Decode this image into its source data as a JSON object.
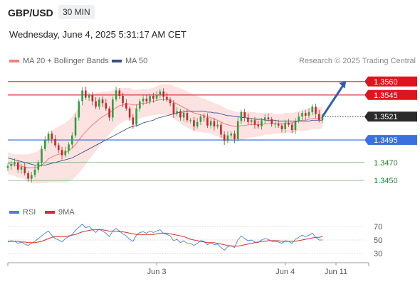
{
  "header": {
    "symbol": "GBP/USD",
    "timeframe": "30 MIN"
  },
  "datetime": "Wednesday, June 4, 2025 5:31:17 AM CET",
  "legend": {
    "ma20": "MA 20 + Bollinger Bands",
    "ma50": "MA 50"
  },
  "credit": "Research © 2025 Trading Central",
  "rsi_legend": {
    "rsi": "RSI",
    "ma": "9MA"
  },
  "colors": {
    "up": "#2e9e3e",
    "down": "#c62828",
    "resistance": "#e0141e",
    "support": "#3a6fe0",
    "target_green": "#4a9a4a",
    "ma50": "#3d4f8a",
    "bollinger_fill": "#fde2e2",
    "ma20": "#f08080",
    "arrow": "#2f5fa8"
  },
  "chart_data": [
    {
      "type": "candlestick",
      "ylim": [
        1.3428,
        1.3578
      ],
      "xlim": [
        0,
        105
      ],
      "x_ticks": [
        {
          "index": 44,
          "label": "Jun 3"
        },
        {
          "index": 82,
          "label": "Jun 4"
        },
        {
          "index": 97,
          "label": "Jun 11"
        }
      ],
      "price_levels": [
        {
          "value": 1.356,
          "label": "1.3560",
          "kind": "resistance"
        },
        {
          "value": 1.3545,
          "label": "1.3545",
          "kind": "resistance"
        },
        {
          "value": 1.3521,
          "label": "1.3521",
          "kind": "current"
        },
        {
          "value": 1.3495,
          "label": "1.3495",
          "kind": "support"
        },
        {
          "value": 1.347,
          "label": "1.3470",
          "kind": "target"
        },
        {
          "value": 1.345,
          "label": "1.3450",
          "kind": "target"
        }
      ],
      "close": [
        1.3466,
        1.3468,
        1.347,
        1.3462,
        1.3465,
        1.3458,
        1.3452,
        1.3456,
        1.3462,
        1.347,
        1.3485,
        1.3495,
        1.3502,
        1.3496,
        1.3489,
        1.3484,
        1.3478,
        1.3483,
        1.349,
        1.35,
        1.352,
        1.3538,
        1.355,
        1.3542,
        1.3545,
        1.3538,
        1.3532,
        1.354,
        1.3536,
        1.353,
        1.352,
        1.354,
        1.355,
        1.3544,
        1.3536,
        1.353,
        1.352,
        1.3512,
        1.353,
        1.3538,
        1.3541,
        1.3538,
        1.3544,
        1.3541,
        1.3545,
        1.3549,
        1.3543,
        1.354,
        1.3536,
        1.3524,
        1.3527,
        1.352,
        1.3525,
        1.3517,
        1.3517,
        1.351,
        1.3515,
        1.3521,
        1.352,
        1.3511,
        1.3516,
        1.351,
        1.3512,
        1.3501,
        1.3494,
        1.35,
        1.3502,
        1.3496,
        1.3516,
        1.3526,
        1.352,
        1.3515,
        1.3517,
        1.3512,
        1.351,
        1.3517,
        1.352,
        1.3518,
        1.3513,
        1.3513,
        1.3511,
        1.3507,
        1.3514,
        1.3512,
        1.3506,
        1.3516,
        1.3521,
        1.3525,
        1.3522,
        1.3526,
        1.3532,
        1.3524,
        1.3517,
        1.3521
      ],
      "projection": {
        "from_index": 93,
        "from_value": 1.3521,
        "to_index": 100,
        "to_value": 1.356
      },
      "ma20": [
        1.3469,
        1.3468,
        1.3467,
        1.3466,
        1.3466,
        1.3465,
        1.3464,
        1.3464,
        1.3464,
        1.3465,
        1.3467,
        1.347,
        1.3474,
        1.3476,
        1.3478,
        1.3479,
        1.348,
        1.3481,
        1.3483,
        1.3486,
        1.349,
        1.3495,
        1.35,
        1.3504,
        1.3508,
        1.3512,
        1.3515,
        1.3518,
        1.3521,
        1.3523,
        1.3525,
        1.3528,
        1.3531,
        1.3533,
        1.3534,
        1.3535,
        1.3535,
        1.3534,
        1.3534,
        1.3535,
        1.3536,
        1.3536,
        1.3537,
        1.3538,
        1.3539,
        1.354,
        1.354,
        1.354,
        1.3539,
        1.3537,
        1.3535,
        1.3533,
        1.3531,
        1.3529,
        1.3527,
        1.3525,
        1.3524,
        1.3523,
        1.3522,
        1.3521,
        1.352,
        1.3518,
        1.3517,
        1.3515,
        1.3513,
        1.3512,
        1.3511,
        1.351,
        1.351,
        1.3511,
        1.3511,
        1.3512,
        1.3512,
        1.3512,
        1.3512,
        1.3512,
        1.3513,
        1.3513,
        1.3513,
        1.3513,
        1.3513,
        1.3513,
        1.3514,
        1.3514,
        1.3514,
        1.3515,
        1.3516,
        1.3517,
        1.3517,
        1.3518,
        1.3519,
        1.3519,
        1.3519,
        1.352
      ],
      "bollinger_width": [
        0.0012,
        0.0012,
        0.0012,
        0.0013,
        0.0013,
        0.0014,
        0.0015,
        0.0016,
        0.0017,
        0.0018,
        0.002,
        0.0023,
        0.0026,
        0.0028,
        0.003,
        0.0031,
        0.0032,
        0.0033,
        0.0034,
        0.0035,
        0.0036,
        0.0037,
        0.0037,
        0.0036,
        0.0035,
        0.0034,
        0.0032,
        0.003,
        0.0028,
        0.0026,
        0.0024,
        0.0022,
        0.0021,
        0.002,
        0.0019,
        0.0018,
        0.0018,
        0.0017,
        0.0017,
        0.0016,
        0.0016,
        0.0015,
        0.0015,
        0.0015,
        0.0016,
        0.0016,
        0.0017,
        0.0017,
        0.0018,
        0.0018,
        0.0019,
        0.0019,
        0.002,
        0.002,
        0.002,
        0.002,
        0.002,
        0.0019,
        0.0019,
        0.0018,
        0.0018,
        0.0018,
        0.0018,
        0.0018,
        0.0018,
        0.0017,
        0.0017,
        0.0017,
        0.0016,
        0.0016,
        0.0015,
        0.0015,
        0.0014,
        0.0014,
        0.0013,
        0.0013,
        0.0012,
        0.0012,
        0.0012,
        0.0011,
        0.0011,
        0.0011,
        0.0011,
        0.0011,
        0.0011,
        0.0011,
        0.0011,
        0.0012,
        0.0012,
        0.0012,
        0.0012,
        0.0012,
        0.0012,
        0.0012
      ],
      "ma50": [
        1.3475,
        1.3474,
        1.3473,
        1.3472,
        1.3471,
        1.347,
        1.3469,
        1.3468,
        1.3467,
        1.3467,
        1.3467,
        1.3467,
        1.3468,
        1.3469,
        1.347,
        1.3471,
        1.3472,
        1.3473,
        1.3474,
        1.3475,
        1.3477,
        1.3479,
        1.3481,
        1.3483,
        1.3485,
        1.3487,
        1.3489,
        1.3491,
        1.3493,
        1.3495,
        1.3497,
        1.3499,
        1.3501,
        1.3503,
        1.3505,
        1.3507,
        1.3509,
        1.351,
        1.3511,
        1.3512,
        1.3514,
        1.3515,
        1.3516,
        1.3517,
        1.3519,
        1.352,
        1.3521,
        1.3522,
        1.3523,
        1.3524,
        1.3525,
        1.3526,
        1.3526,
        1.3527,
        1.3527,
        1.3527,
        1.3527,
        1.3527,
        1.3527,
        1.3526,
        1.3526,
        1.3525,
        1.3525,
        1.3524,
        1.3523,
        1.3522,
        1.3522,
        1.3521,
        1.3521,
        1.352,
        1.352,
        1.3519,
        1.3519,
        1.3518,
        1.3518,
        1.3518,
        1.3517,
        1.3517,
        1.3517,
        1.3517,
        1.3516,
        1.3516,
        1.3516,
        1.3516,
        1.3516,
        1.3516,
        1.3516,
        1.3516,
        1.3516,
        1.3516,
        1.3517,
        1.3517,
        1.3517,
        1.3517
      ]
    },
    {
      "type": "line",
      "name": "RSI panel",
      "ylim": [
        25,
        75
      ],
      "y_ticks": [
        70,
        50,
        30
      ],
      "rsi": [
        47,
        49,
        48,
        45,
        47,
        44,
        42,
        45,
        48,
        52,
        56,
        60,
        63,
        57,
        52,
        50,
        47,
        52,
        55,
        58,
        64,
        69,
        73,
        68,
        70,
        65,
        61,
        66,
        63,
        60,
        55,
        63,
        67,
        63,
        59,
        56,
        51,
        48,
        57,
        61,
        62,
        60,
        63,
        61,
        63,
        65,
        60,
        58,
        56,
        49,
        51,
        46,
        49,
        45,
        45,
        42,
        45,
        49,
        48,
        43,
        46,
        43,
        44,
        39,
        35,
        40,
        42,
        39,
        50,
        56,
        52,
        49,
        50,
        47,
        46,
        50,
        52,
        51,
        48,
        48,
        47,
        45,
        49,
        48,
        45,
        51,
        54,
        57,
        55,
        57,
        60,
        54,
        50,
        50
      ],
      "rsi_ma": [
        48,
        48,
        48,
        48,
        47,
        47,
        46,
        46,
        46,
        47,
        48,
        50,
        52,
        54,
        55,
        55,
        55,
        55,
        56,
        57,
        58,
        60,
        62,
        63,
        64,
        65,
        65,
        65,
        65,
        64,
        63,
        63,
        63,
        62,
        62,
        61,
        60,
        59,
        58,
        58,
        58,
        58,
        58,
        58,
        59,
        60,
        60,
        60,
        59,
        58,
        57,
        56,
        55,
        53,
        51,
        50,
        49,
        48,
        47,
        46,
        46,
        46,
        45,
        44,
        43,
        42,
        41,
        41,
        41,
        42,
        43,
        44,
        45,
        46,
        47,
        48,
        48,
        49,
        49,
        49,
        49,
        48,
        48,
        48,
        48,
        48,
        49,
        50,
        51,
        52,
        53,
        54,
        54,
        55
      ]
    }
  ]
}
